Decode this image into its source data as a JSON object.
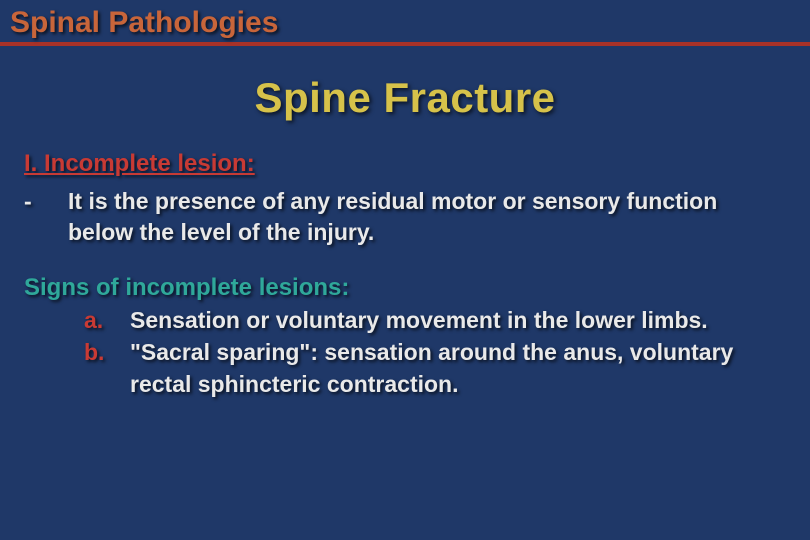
{
  "colors": {
    "background": "#1f3868",
    "header_text": "#c8653a",
    "header_underline": "#a83228",
    "main_title": "#d6c24a",
    "section_heading": "#c83a34",
    "body_text": "#e9e9e9",
    "signs_heading": "#2fa89a",
    "sub_marker": "#c83a34"
  },
  "typography": {
    "header_fontsize": 30,
    "main_title_fontsize": 42,
    "section_fontsize": 24,
    "body_fontsize": 23,
    "font_weight": "bold"
  },
  "header": {
    "title": "Spinal Pathologies"
  },
  "main_title": "Spine Fracture",
  "section": {
    "heading": "I. Incomplete lesion:",
    "bullets": [
      {
        "marker": "-",
        "text": "It is the presence of any residual motor or sensory function below the level of the injury."
      }
    ]
  },
  "signs": {
    "heading": "Signs of incomplete lesions:",
    "items": [
      {
        "marker": "a.",
        "text": "Sensation or voluntary movement in the lower limbs."
      },
      {
        "marker": "b.",
        "text": "\"Sacral sparing\": sensation around the anus, voluntary rectal sphincteric contraction."
      }
    ]
  }
}
